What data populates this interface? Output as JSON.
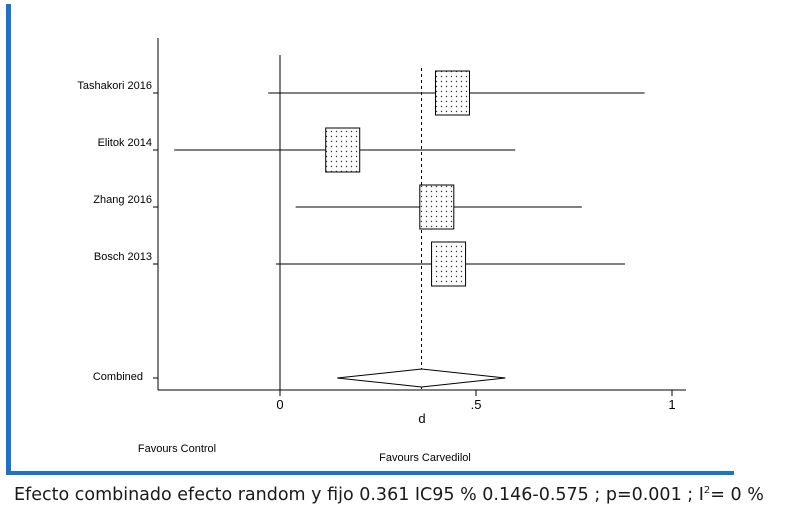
{
  "chart_data": {
    "type": "forest",
    "title": "",
    "xlabel": "d",
    "ylabel": "",
    "xlim": [
      -0.3,
      1.0
    ],
    "x_ticks": [
      {
        "value": 0,
        "label": "0"
      },
      {
        "value": 0.5,
        "label": ".5"
      },
      {
        "value": 1,
        "label": "1"
      }
    ],
    "grid": false,
    "studies": [
      {
        "label": "Tashakori 2016",
        "estimate": 0.44,
        "ci_low": -0.03,
        "ci_high": 0.93
      },
      {
        "label": "Elitok 2014",
        "estimate": 0.16,
        "ci_low": -0.27,
        "ci_high": 0.6
      },
      {
        "label": "Zhang 2016",
        "estimate": 0.4,
        "ci_low": 0.04,
        "ci_high": 0.77
      },
      {
        "label": "Bosch 2013",
        "estimate": 0.43,
        "ci_low": -0.01,
        "ci_high": 0.88
      }
    ],
    "combined": {
      "label": "Combined",
      "estimate": 0.361,
      "ci_low": 0.146,
      "ci_high": 0.575
    },
    "reference_line": 0,
    "pooled_line": 0.361,
    "favours_left": "Favours Control",
    "favours_right": "Favours Carvedilol"
  },
  "footnote": {
    "text_before_sup": "Efecto combinado efecto random y fijo 0.361 IC95 % 0.146-0.575 ; p=0.001 ; I",
    "sup": "2",
    "text_after_sup": "= 0 %"
  },
  "colors": {
    "accent_bar": "#1a73c9",
    "axis": "#000000"
  }
}
